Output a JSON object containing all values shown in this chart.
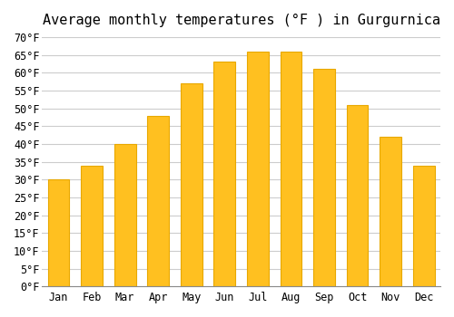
{
  "title": "Average monthly temperatures (°F ) in Gurgurnica",
  "months": [
    "Jan",
    "Feb",
    "Mar",
    "Apr",
    "May",
    "Jun",
    "Jul",
    "Aug",
    "Sep",
    "Oct",
    "Nov",
    "Dec"
  ],
  "values": [
    30,
    34,
    40,
    48,
    57,
    63,
    66,
    66,
    61,
    51,
    42,
    34
  ],
  "bar_color": "#FFC020",
  "bar_edge_color": "#E8A800",
  "background_color": "#FFFFFF",
  "grid_color": "#CCCCCC",
  "ylim": [
    0,
    70
  ],
  "yticks": [
    0,
    5,
    10,
    15,
    20,
    25,
    30,
    35,
    40,
    45,
    50,
    55,
    60,
    65,
    70
  ],
  "ytick_labels": [
    "0°F",
    "5°F",
    "10°F",
    "15°F",
    "20°F",
    "25°F",
    "30°F",
    "35°F",
    "40°F",
    "45°F",
    "50°F",
    "55°F",
    "60°F",
    "65°F",
    "70°F"
  ],
  "title_fontsize": 11,
  "tick_fontsize": 8.5,
  "font_family": "monospace"
}
